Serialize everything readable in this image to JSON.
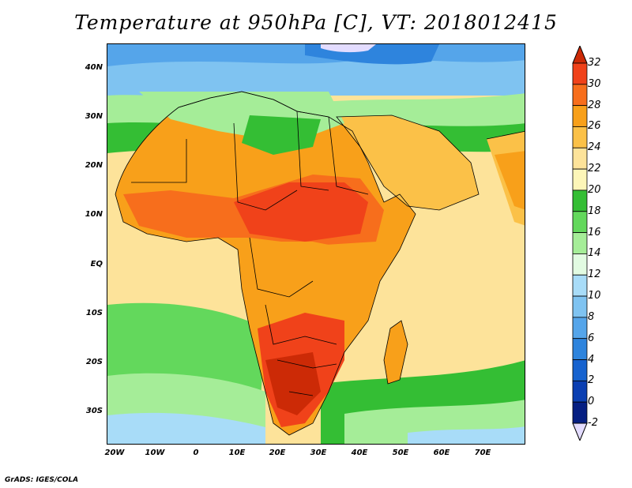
{
  "title": "Temperature at 950hPa [C], VT: 2018012415",
  "footer": "GrADS: IGES/COLA",
  "map": {
    "region": "Africa, Arabian Peninsula and western Indian Ocean",
    "lat_range": [
      -37,
      45
    ],
    "lon_range": [
      -23,
      80
    ],
    "lat_ticks": [
      "40N",
      "30N",
      "20N",
      "10N",
      "EQ",
      "10S",
      "20S",
      "30S"
    ],
    "lon_ticks": [
      "20W",
      "10W",
      "0",
      "10E",
      "20E",
      "30E",
      "40E",
      "50E",
      "60E",
      "70E"
    ]
  },
  "colorbar": {
    "levels": [
      "32",
      "30",
      "28",
      "26",
      "24",
      "22",
      "20",
      "18",
      "16",
      "14",
      "12",
      "10",
      "8",
      "6",
      "4",
      "2",
      "0",
      "-2"
    ],
    "colors": [
      "#cc2a06",
      "#f0421a",
      "#f76e1c",
      "#f8a01a",
      "#fbc148",
      "#fde39a",
      "#fdf6b8",
      "#34be34",
      "#63d85c",
      "#a5ed98",
      "#e2fbe2",
      "#a8dcf8",
      "#7fc3f1",
      "#55a5ea",
      "#2e84dd",
      "#1763cf",
      "#0b3fb2",
      "#061f82",
      "#e3dcff"
    ]
  }
}
